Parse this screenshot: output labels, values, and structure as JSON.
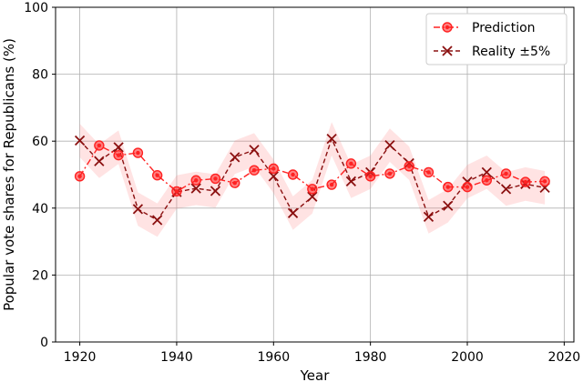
{
  "chart_data": {
    "type": "line",
    "title": "",
    "xlabel": "Year",
    "ylabel": "Popular vote shares for Republicans (%)",
    "xlim": [
      1915,
      2022
    ],
    "ylim": [
      0,
      100
    ],
    "xticks": [
      1920,
      1940,
      1960,
      1980,
      2000,
      2020
    ],
    "yticks": [
      0,
      20,
      40,
      60,
      80,
      100
    ],
    "grid": true,
    "legend_position": "top-right",
    "band_halfwidth": 5,
    "x": [
      1920,
      1924,
      1928,
      1932,
      1936,
      1940,
      1944,
      1948,
      1952,
      1956,
      1960,
      1964,
      1968,
      1972,
      1976,
      1980,
      1984,
      1988,
      1992,
      1996,
      2000,
      2004,
      2008,
      2012,
      2016
    ],
    "series": [
      {
        "name": "Prediction",
        "style": "dash-dot",
        "marker": "circle",
        "color": "#ff2222",
        "values": [
          49.5,
          58.7,
          55.8,
          56.5,
          49.8,
          45.0,
          48.3,
          48.8,
          47.5,
          51.3,
          51.8,
          50.0,
          45.7,
          47.0,
          53.3,
          49.5,
          50.3,
          52.5,
          50.7,
          46.3,
          46.3,
          48.3,
          50.3,
          47.8,
          48.0
        ]
      },
      {
        "name": "Reality ±5%",
        "style": "dashed",
        "marker": "x",
        "color": "#8b1010",
        "values": [
          60.2,
          54.0,
          58.2,
          39.7,
          36.4,
          44.8,
          45.9,
          45.1,
          55.2,
          57.4,
          49.5,
          38.5,
          43.4,
          60.7,
          48.0,
          50.7,
          58.8,
          53.4,
          37.4,
          40.7,
          47.9,
          50.7,
          45.7,
          47.2,
          46.1
        ]
      }
    ]
  }
}
